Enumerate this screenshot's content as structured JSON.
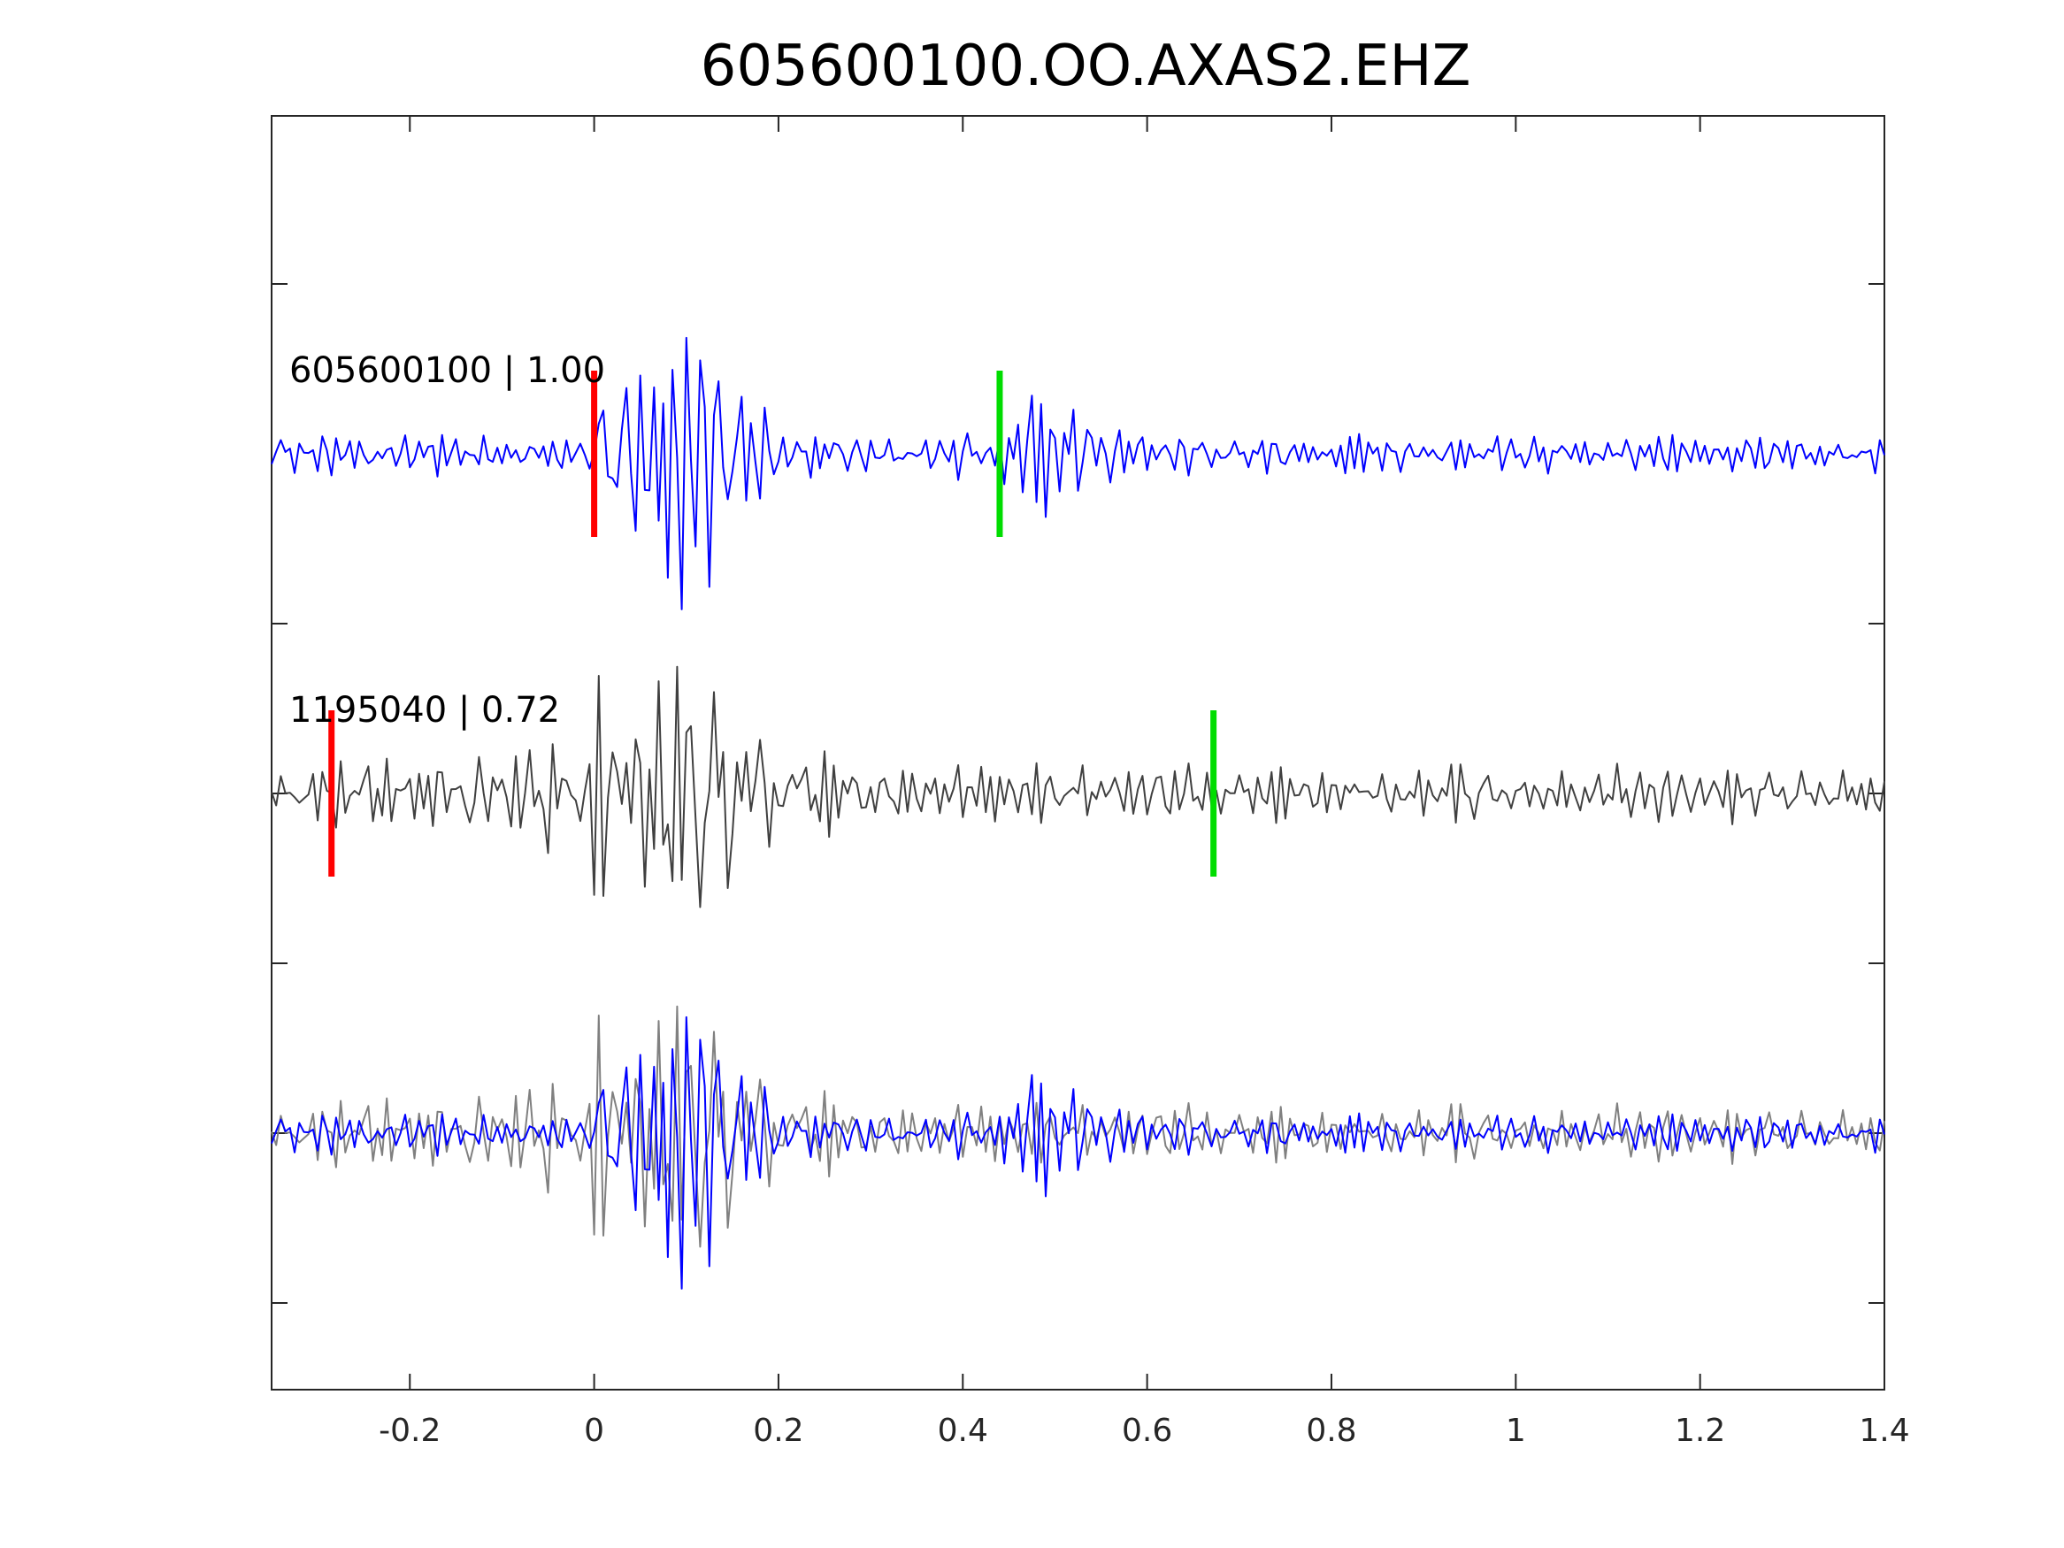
{
  "chart_data": {
    "type": "line",
    "title": "605600100.OO.AXAS2.EHZ",
    "xlabel": "",
    "ylabel": "",
    "xlim": [
      -0.35,
      1.4
    ],
    "x_ticks": [
      {
        "value": -0.2,
        "label": "-0.2"
      },
      {
        "value": 0,
        "label": "0"
      },
      {
        "value": 0.2,
        "label": "0.2"
      },
      {
        "value": 0.4,
        "label": "0.4"
      },
      {
        "value": 0.6,
        "label": "0.6"
      },
      {
        "value": 0.8,
        "label": "0.8"
      },
      {
        "value": 1,
        "label": "1"
      },
      {
        "value": 1.2,
        "label": "1.2"
      },
      {
        "value": 1.4,
        "label": "1.4"
      }
    ],
    "y_tick_count": 7,
    "grid": false,
    "colors": {
      "template": "#0000ff",
      "match": "#404040",
      "overlay_match": "#808080",
      "p_pick": "#ff0000",
      "s_pick": "#00dd00",
      "axis": "#262626"
    },
    "traces": [
      {
        "label": "605600100 | 1.00",
        "id": "605600100",
        "cc": "1.00",
        "color": "#0000ff",
        "p_pick": 0.0,
        "s_pick": 0.44
      },
      {
        "label": "1195040 | 0.72",
        "id": "1195040",
        "cc": "0.72",
        "color": "#404040",
        "p_pick": -0.285,
        "s_pick": 0.672
      }
    ],
    "overlay": {
      "series": [
        "605600100",
        "1195040"
      ]
    }
  }
}
